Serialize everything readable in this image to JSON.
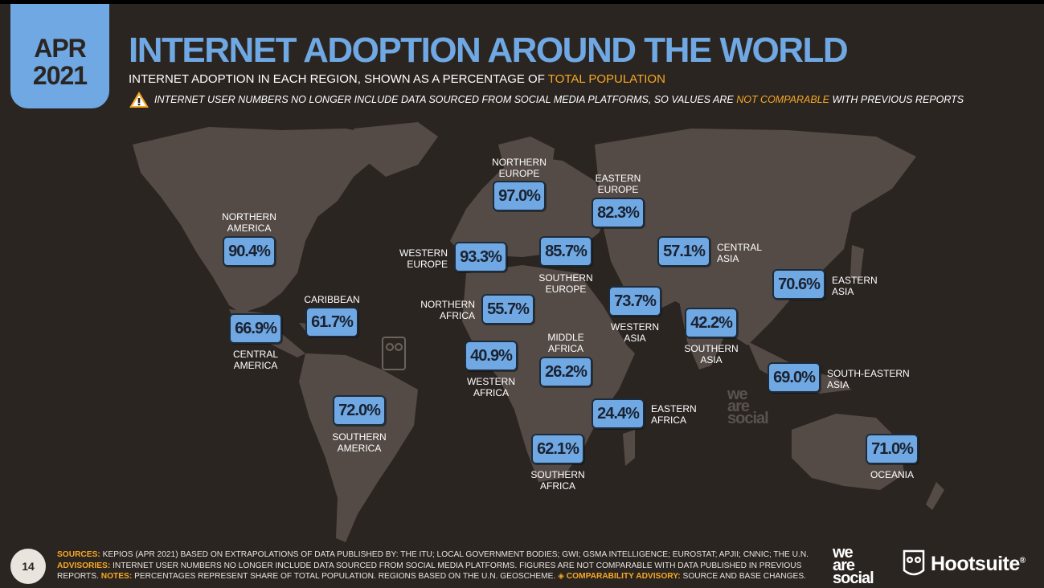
{
  "header": {
    "month": "APR",
    "year": "2021",
    "title": "INTERNET ADOPTION AROUND THE WORLD",
    "subtitle_main": "INTERNET ADOPTION IN EACH REGION, SHOWN AS A PERCENTAGE OF",
    "subtitle_accent": "TOTAL POPULATION",
    "advisory_main": "INTERNET USER NUMBERS NO LONGER INCLUDE DATA SOURCED FROM SOCIAL MEDIA PLATFORMS, SO VALUES ARE",
    "advisory_accent": "NOT COMPARABLE",
    "advisory_end": "WITH PREVIOUS REPORTS"
  },
  "chart_data": {
    "type": "table",
    "title": "INTERNET ADOPTION AROUND THE WORLD",
    "unit": "% of total population",
    "regions": [
      {
        "key": "northern_america",
        "name_lines": [
          "NORTHERN",
          "AMERICA"
        ],
        "value": 90.4,
        "display": "90.4%"
      },
      {
        "key": "central_america",
        "name_lines": [
          "CENTRAL",
          "AMERICA"
        ],
        "value": 66.9,
        "display": "66.9%"
      },
      {
        "key": "caribbean",
        "name_lines": [
          "CARIBBEAN"
        ],
        "value": 61.7,
        "display": "61.7%"
      },
      {
        "key": "southern_america",
        "name_lines": [
          "SOUTHERN",
          "AMERICA"
        ],
        "value": 72.0,
        "display": "72.0%"
      },
      {
        "key": "northern_europe",
        "name_lines": [
          "NORTHERN",
          "EUROPE"
        ],
        "value": 97.0,
        "display": "97.0%"
      },
      {
        "key": "western_europe",
        "name_lines": [
          "WESTERN",
          "EUROPE"
        ],
        "value": 93.3,
        "display": "93.3%"
      },
      {
        "key": "southern_europe",
        "name_lines": [
          "SOUTHERN",
          "EUROPE"
        ],
        "value": 85.7,
        "display": "85.7%"
      },
      {
        "key": "eastern_europe",
        "name_lines": [
          "EASTERN",
          "EUROPE"
        ],
        "value": 82.3,
        "display": "82.3%"
      },
      {
        "key": "northern_africa",
        "name_lines": [
          "NORTHERN",
          "AFRICA"
        ],
        "value": 55.7,
        "display": "55.7%"
      },
      {
        "key": "western_africa",
        "name_lines": [
          "WESTERN",
          "AFRICA"
        ],
        "value": 40.9,
        "display": "40.9%"
      },
      {
        "key": "middle_africa",
        "name_lines": [
          "MIDDLE",
          "AFRICA"
        ],
        "value": 26.2,
        "display": "26.2%"
      },
      {
        "key": "eastern_africa",
        "name_lines": [
          "EASTERN",
          "AFRICA"
        ],
        "value": 24.4,
        "display": "24.4%"
      },
      {
        "key": "southern_africa",
        "name_lines": [
          "SOUTHERN",
          "AFRICA"
        ],
        "value": 62.1,
        "display": "62.1%"
      },
      {
        "key": "western_asia",
        "name_lines": [
          "WESTERN",
          "ASIA"
        ],
        "value": 73.7,
        "display": "73.7%"
      },
      {
        "key": "central_asia",
        "name_lines": [
          "CENTRAL",
          "ASIA"
        ],
        "value": 57.1,
        "display": "57.1%"
      },
      {
        "key": "southern_asia",
        "name_lines": [
          "SOUTHERN",
          "ASIA"
        ],
        "value": 42.2,
        "display": "42.2%"
      },
      {
        "key": "eastern_asia",
        "name_lines": [
          "EASTERN",
          "ASIA"
        ],
        "value": 70.6,
        "display": "70.6%"
      },
      {
        "key": "south_eastern_asia",
        "name_lines": [
          "SOUTH-EASTERN",
          "ASIA"
        ],
        "value": 69.0,
        "display": "69.0%"
      },
      {
        "key": "oceania",
        "name_lines": [
          "OCEANIA"
        ],
        "value": 71.0,
        "display": "71.0%"
      }
    ]
  },
  "footer": {
    "sources_label": "SOURCES:",
    "sources_text": "KEPIOS (APR 2021) BASED ON EXTRAPOLATIONS OF DATA PUBLISHED BY: THE ITU; LOCAL GOVERNMENT BODIES; GWI; GSMA INTELLIGENCE; EUROSTAT; APJII; CNNIC; THE U.N.",
    "advisories_label": "ADVISORIES:",
    "advisories_text": "INTERNET USER NUMBERS NO LONGER INCLUDE DATA SOURCED FROM SOCIAL MEDIA PLATFORMS. FIGURES ARE NOT COMPARABLE WITH DATA PUBLISHED IN PREVIOUS REPORTS.",
    "notes_label": "NOTES:",
    "notes_text": "PERCENTAGES REPRESENT SHARE OF TOTAL POPULATION. REGIONS BASED ON THE U.N. GEOSCHEME.",
    "comparability_label": "◈ COMPARABILITY ADVISORY:",
    "comparability_text": "SOURCE AND BASE CHANGES.",
    "page_number": "14"
  },
  "branding": {
    "wearesocial_lines": [
      "we",
      "are",
      "social"
    ],
    "hootsuite": "Hootsuite",
    "registered": "®"
  },
  "colors": {
    "background": "#2b2522",
    "land": "#544b46",
    "accent_blue": "#6fa8e3",
    "accent_orange": "#f7a823"
  }
}
